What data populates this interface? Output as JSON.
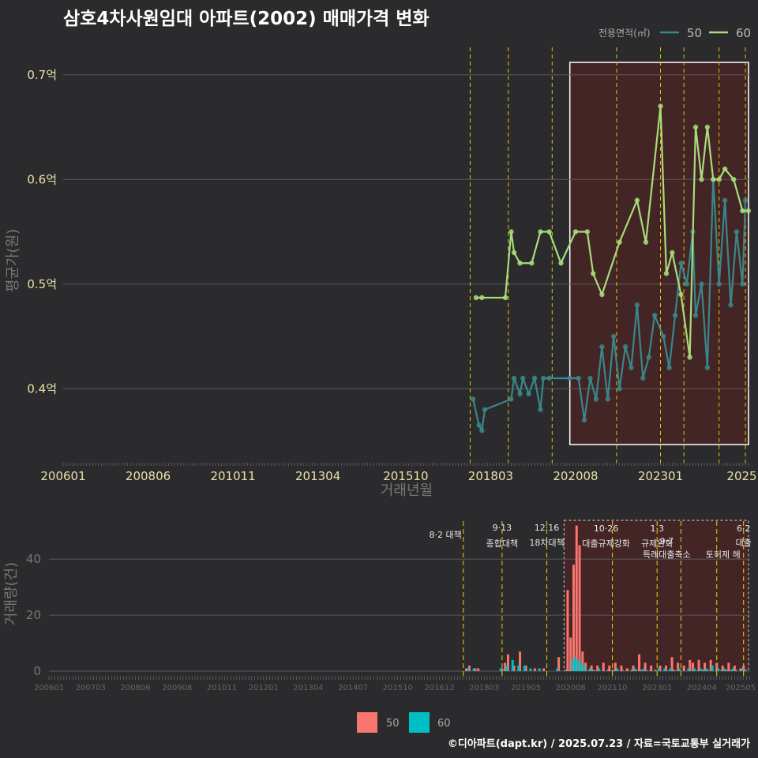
{
  "title": "삼호4차사원임대 아파트(2002) 매매가격 변화",
  "footer": "©디아파트(dapt.kr) / 2025.07.23 / 자료=국토교통부 실거래가",
  "colors": {
    "bg": "#2b2b2d",
    "area50": "#39878b",
    "area60": "#a8dc7a",
    "bar50": "#f8766d",
    "bar60": "#00bfc4",
    "policy": "#e6c200",
    "highlight": "#5a2020"
  },
  "price_legend": {
    "title": "전용면적(㎡)",
    "items": [
      "50",
      "60"
    ]
  },
  "volume_legend": {
    "items": [
      "50",
      "60"
    ]
  },
  "policies": [
    {
      "date": "201708",
      "line1": "8·2 대책",
      "line2": ""
    },
    {
      "date": "201809",
      "line1": "9·13",
      "line2": "종합대책"
    },
    {
      "date": "201912",
      "line1": "12·16",
      "line2": "18차대책"
    },
    {
      "date": "202110",
      "line1": "10·26",
      "line2": "대출규제강화"
    },
    {
      "date": "202301",
      "line1": "1·3",
      "line2": "규제완화"
    },
    {
      "date": "202309",
      "line1": "9·7",
      "line2": "특례대출축소"
    },
    {
      "date": "202409",
      "line1": "",
      "line2": "토허제 해"
    },
    {
      "date": "202506",
      "line1": "6·2",
      "line2": "대출"
    }
  ],
  "chart_data": [
    {
      "type": "line",
      "title": "삼호4차사원임대 아파트(2002) 매매가격 변화",
      "xlabel": "거래년월",
      "ylabel": "평균가(원)",
      "x_ticks": [
        "200601",
        "200806",
        "201011",
        "201304",
        "201510",
        "201803",
        "202008",
        "202301",
        "2025"
      ],
      "y_ticks": [
        "0.4억",
        "0.5억",
        "0.6억",
        "0.7억"
      ],
      "ylim": [
        0.33,
        0.73
      ],
      "y_unit": "억",
      "grid": true,
      "legend_position": "top-right",
      "series": [
        {
          "name": "50",
          "points": [
            [
              "2017-09",
              0.39
            ],
            [
              "2017-11",
              0.365
            ],
            [
              "2017-12",
              0.36
            ],
            [
              "2018-01",
              0.38
            ],
            [
              "2018-10",
              0.39
            ],
            [
              "2018-11",
              0.41
            ],
            [
              "2019-01",
              0.395
            ],
            [
              "2019-02",
              0.41
            ],
            [
              "2019-04",
              0.395
            ],
            [
              "2019-06",
              0.41
            ],
            [
              "2019-08",
              0.38
            ],
            [
              "2019-09",
              0.41
            ],
            [
              "2019-11",
              0.41
            ],
            [
              "2020-06",
              0.41
            ],
            [
              "2020-09",
              0.41
            ],
            [
              "2020-11",
              0.37
            ],
            [
              "2021-01",
              0.41
            ],
            [
              "2021-03",
              0.39
            ],
            [
              "2021-05",
              0.44
            ],
            [
              "2021-07",
              0.39
            ],
            [
              "2021-09",
              0.45
            ],
            [
              "2021-11",
              0.4
            ],
            [
              "2022-01",
              0.44
            ],
            [
              "2022-03",
              0.42
            ],
            [
              "2022-05",
              0.48
            ],
            [
              "2022-07",
              0.41
            ],
            [
              "2022-09",
              0.43
            ],
            [
              "2022-11",
              0.47
            ],
            [
              "2023-02",
              0.45
            ],
            [
              "2023-04",
              0.42
            ],
            [
              "2023-06",
              0.47
            ],
            [
              "2023-08",
              0.52
            ],
            [
              "2023-10",
              0.5
            ],
            [
              "2023-12",
              0.55
            ],
            [
              "2024-01",
              0.47
            ],
            [
              "2024-03",
              0.5
            ],
            [
              "2024-05",
              0.42
            ],
            [
              "2024-07",
              0.6
            ],
            [
              "2024-09",
              0.5
            ],
            [
              "2024-11",
              0.58
            ],
            [
              "2025-01",
              0.48
            ],
            [
              "2025-03",
              0.55
            ],
            [
              "2025-05",
              0.5
            ],
            [
              "2025-06",
              0.58
            ]
          ]
        },
        {
          "name": "60",
          "points": [
            [
              "2017-10",
              0.487
            ],
            [
              "2017-12",
              0.487
            ],
            [
              "2018-08",
              0.487
            ],
            [
              "2018-10",
              0.55
            ],
            [
              "2018-11",
              0.53
            ],
            [
              "2019-01",
              0.52
            ],
            [
              "2019-05",
              0.52
            ],
            [
              "2019-08",
              0.55
            ],
            [
              "2019-11",
              0.55
            ],
            [
              "2020-03",
              0.52
            ],
            [
              "2020-08",
              0.55
            ],
            [
              "2020-12",
              0.55
            ],
            [
              "2021-02",
              0.51
            ],
            [
              "2021-05",
              0.49
            ],
            [
              "2021-11",
              0.54
            ],
            [
              "2022-05",
              0.58
            ],
            [
              "2022-08",
              0.54
            ],
            [
              "2023-01",
              0.67
            ],
            [
              "2023-03",
              0.51
            ],
            [
              "2023-05",
              0.53
            ],
            [
              "2023-08",
              0.49
            ],
            [
              "2023-11",
              0.43
            ],
            [
              "2024-01",
              0.65
            ],
            [
              "2024-03",
              0.6
            ],
            [
              "2024-05",
              0.65
            ],
            [
              "2024-07",
              0.6
            ],
            [
              "2024-09",
              0.6
            ],
            [
              "2024-11",
              0.61
            ],
            [
              "2025-02",
              0.6
            ],
            [
              "2025-05",
              0.57
            ],
            [
              "2025-07",
              0.57
            ]
          ]
        }
      ]
    },
    {
      "type": "bar",
      "xlabel": "",
      "ylabel": "거래량(건)",
      "x_ticks": [
        "200601",
        "200703",
        "200806",
        "200908",
        "201011",
        "201201",
        "201304",
        "201407",
        "201510",
        "201612",
        "201803",
        "201905",
        "202008",
        "202110",
        "202301",
        "202404",
        "202505"
      ],
      "y_ticks": [
        "0",
        "20",
        "40"
      ],
      "ylim": [
        0,
        55
      ],
      "series": [
        {
          "name": "50",
          "values": [
            [
              "2017-09",
              1
            ],
            [
              "2017-10",
              2
            ],
            [
              "2017-12",
              1
            ],
            [
              "2018-01",
              1
            ],
            [
              "2018-09",
              1
            ],
            [
              "2018-10",
              3
            ],
            [
              "2018-11",
              6
            ],
            [
              "2019-01",
              2
            ],
            [
              "2019-03",
              7
            ],
            [
              "2019-05",
              2
            ],
            [
              "2019-08",
              1
            ],
            [
              "2019-11",
              1
            ],
            [
              "2020-04",
              5
            ],
            [
              "2020-07",
              29
            ],
            [
              "2020-08",
              12
            ],
            [
              "2020-09",
              38
            ],
            [
              "2020-10",
              52
            ],
            [
              "2020-11",
              45
            ],
            [
              "2020-12",
              7
            ],
            [
              "2021-01",
              3
            ],
            [
              "2021-03",
              2
            ],
            [
              "2021-05",
              2
            ],
            [
              "2021-07",
              3
            ],
            [
              "2021-09",
              2
            ],
            [
              "2021-11",
              3
            ],
            [
              "2022-01",
              2
            ],
            [
              "2022-03",
              1
            ],
            [
              "2022-05",
              2
            ],
            [
              "2022-07",
              6
            ],
            [
              "2022-09",
              3
            ],
            [
              "2022-11",
              2
            ],
            [
              "2023-02",
              2
            ],
            [
              "2023-04",
              2
            ],
            [
              "2023-06",
              5
            ],
            [
              "2023-08",
              3
            ],
            [
              "2023-10",
              2
            ],
            [
              "2023-12",
              4
            ],
            [
              "2024-01",
              3
            ],
            [
              "2024-03",
              4
            ],
            [
              "2024-05",
              3
            ],
            [
              "2024-07",
              4
            ],
            [
              "2024-09",
              3
            ],
            [
              "2024-11",
              2
            ],
            [
              "2025-01",
              3
            ],
            [
              "2025-03",
              2
            ],
            [
              "2025-05",
              1
            ],
            [
              "2025-06",
              2
            ]
          ]
        },
        {
          "name": "60",
          "values": [
            [
              "2017-09",
              1
            ],
            [
              "2017-11",
              1
            ],
            [
              "2018-08",
              1
            ],
            [
              "2018-10",
              2
            ],
            [
              "2018-12",
              4
            ],
            [
              "2019-02",
              2
            ],
            [
              "2019-04",
              2
            ],
            [
              "2019-06",
              1
            ],
            [
              "2019-09",
              1
            ],
            [
              "2020-03",
              1
            ],
            [
              "2020-08",
              4
            ],
            [
              "2020-09",
              5
            ],
            [
              "2020-10",
              4
            ],
            [
              "2020-11",
              3
            ],
            [
              "2020-12",
              2
            ],
            [
              "2021-02",
              1
            ],
            [
              "2021-05",
              1
            ],
            [
              "2021-11",
              1
            ],
            [
              "2022-05",
              1
            ],
            [
              "2022-08",
              1
            ],
            [
              "2023-01",
              1
            ],
            [
              "2023-03",
              1
            ],
            [
              "2023-05",
              1
            ],
            [
              "2023-08",
              1
            ],
            [
              "2023-11",
              1
            ],
            [
              "2024-01",
              1
            ],
            [
              "2024-03",
              1
            ],
            [
              "2024-05",
              1
            ],
            [
              "2024-07",
              2
            ],
            [
              "2024-09",
              1
            ],
            [
              "2024-11",
              1
            ],
            [
              "2025-02",
              1
            ],
            [
              "2025-05",
              1
            ]
          ]
        }
      ]
    }
  ]
}
